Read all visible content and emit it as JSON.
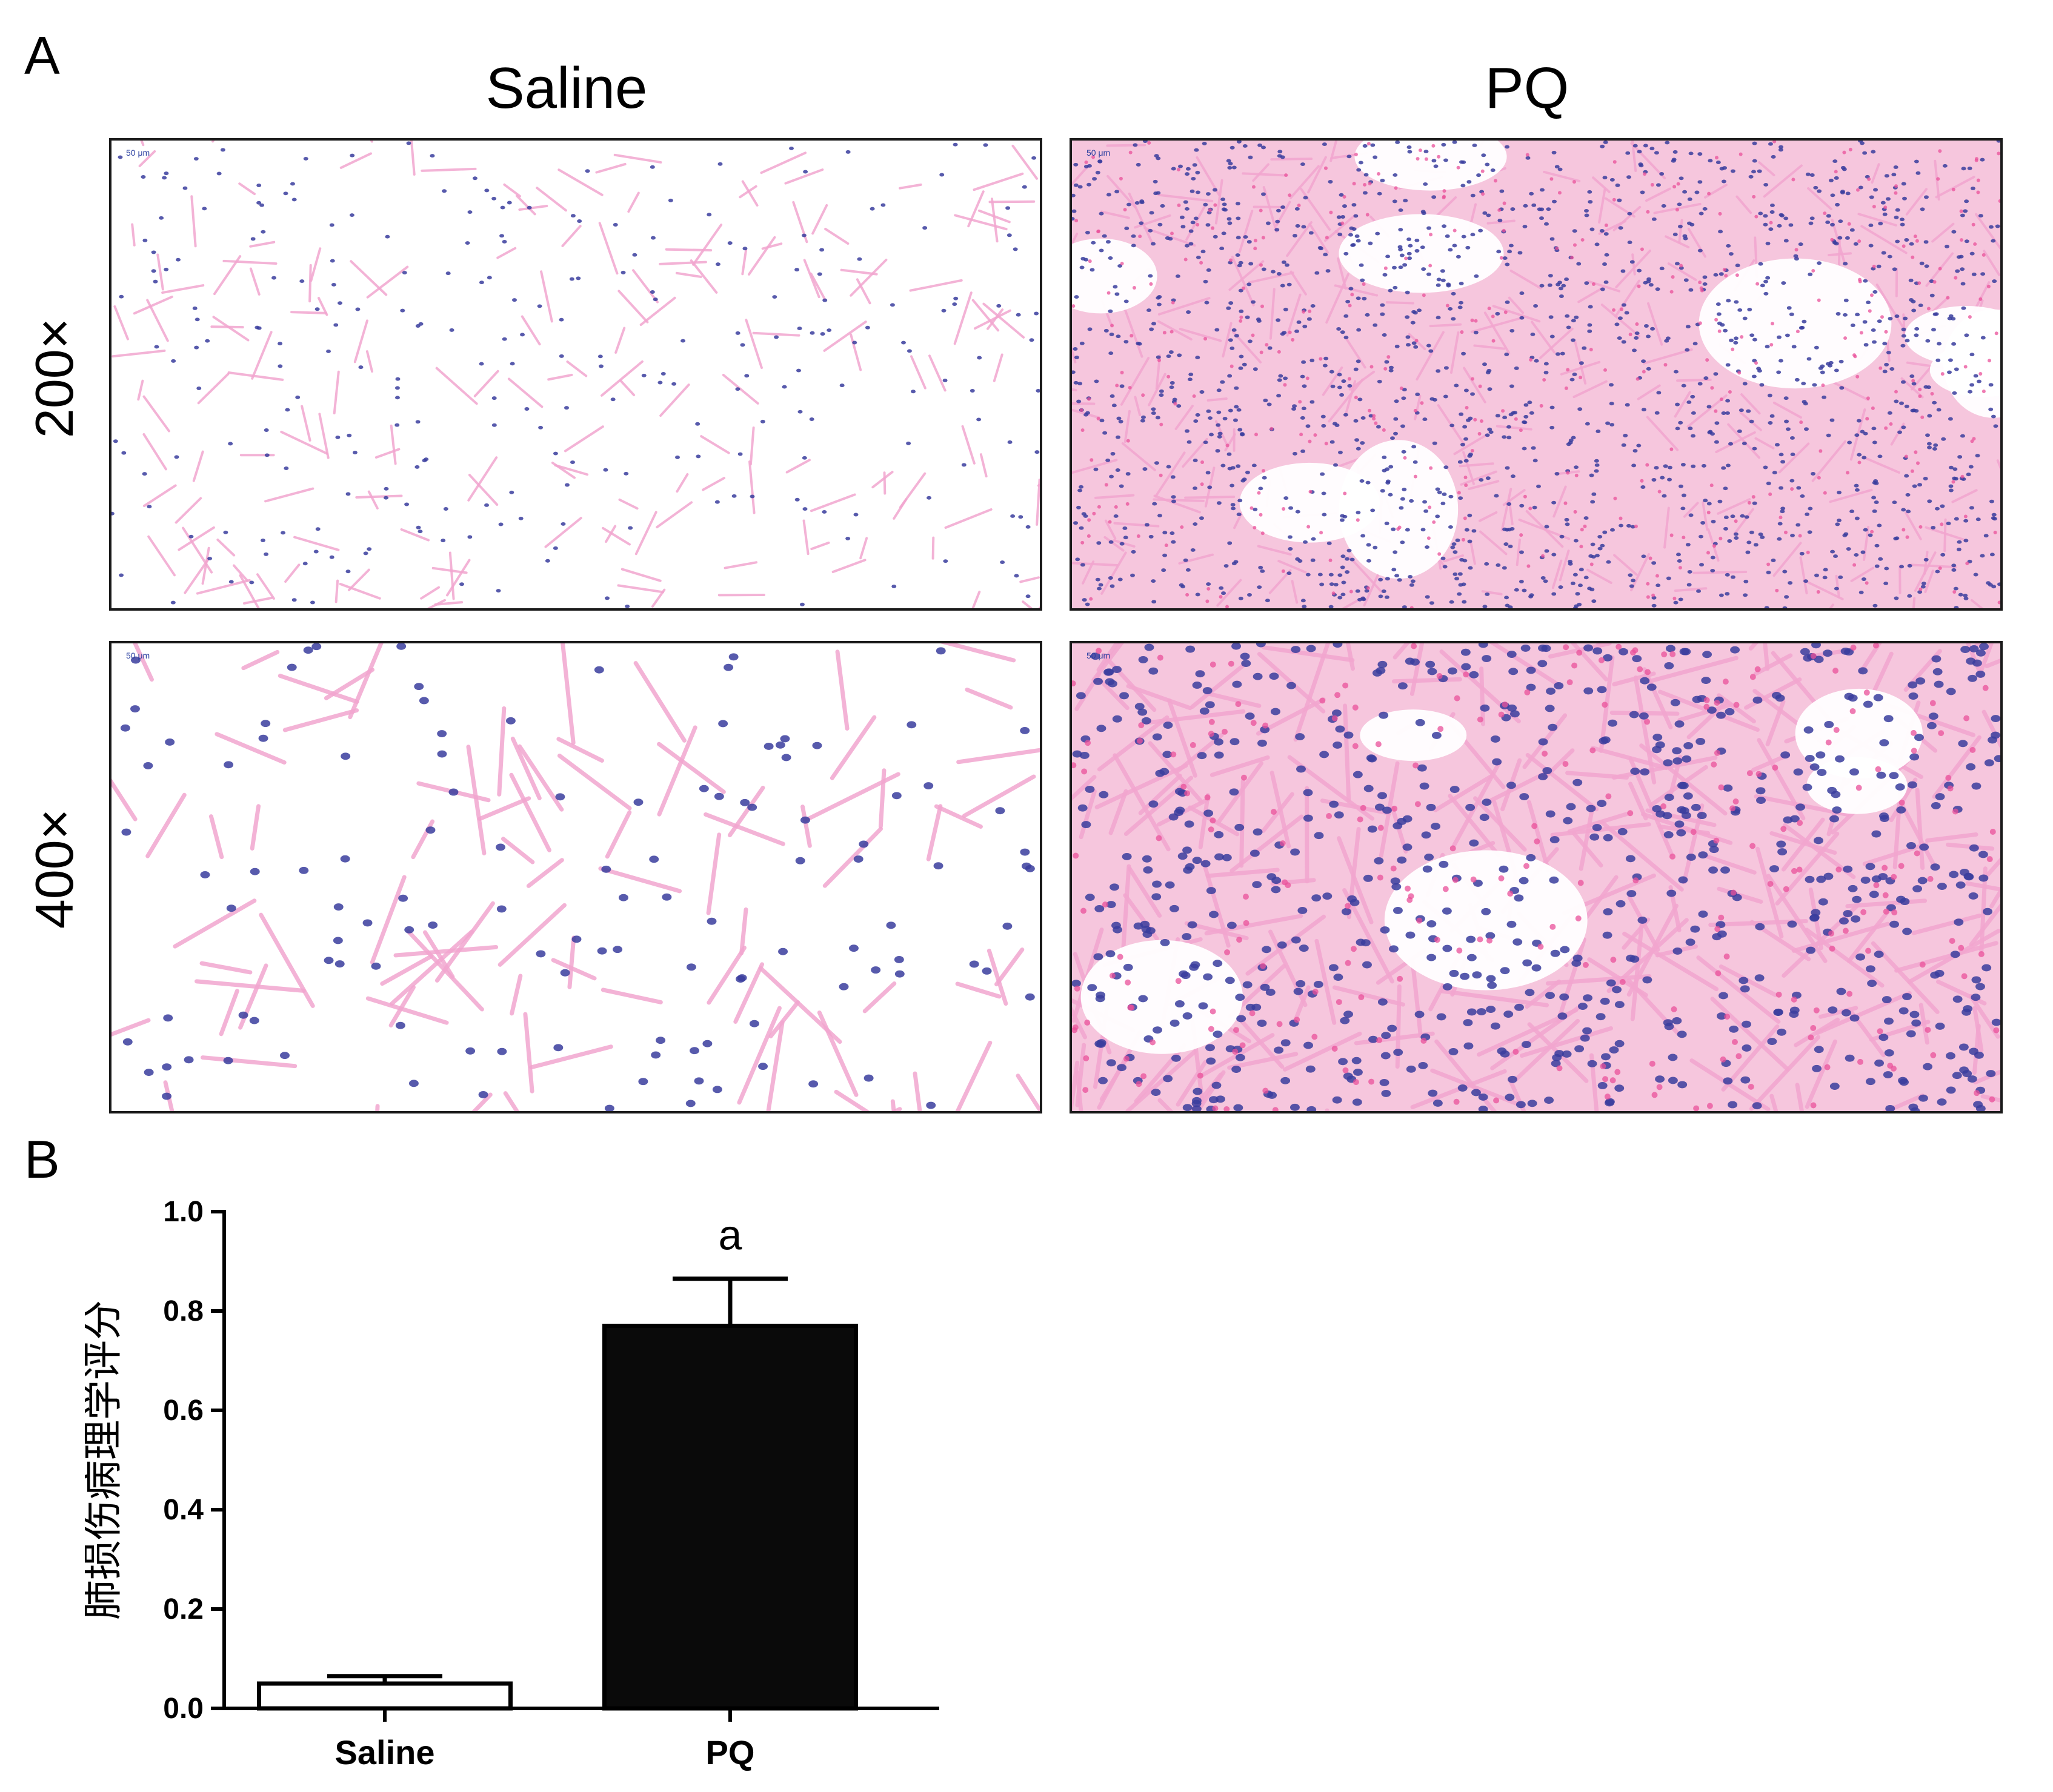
{
  "panel_a": {
    "letter": "A",
    "columns": [
      "Saline",
      "PQ"
    ],
    "rows": [
      "200×",
      "400×"
    ],
    "scale_bar_label": "50 μm",
    "images": [
      {
        "name": "saline-200x-micrograph",
        "density": "sparse"
      },
      {
        "name": "pq-200x-micrograph",
        "density": "dense"
      },
      {
        "name": "saline-400x-micrograph",
        "density": "sparse"
      },
      {
        "name": "pq-400x-micrograph",
        "density": "dense"
      }
    ],
    "colors": {
      "stroma": "#f2a6cf",
      "nuclei": "#3a3d9e",
      "rbc": "#e9509a",
      "border": "#1a1a1a"
    }
  },
  "panel_b": {
    "letter": "B"
  },
  "chart_data": {
    "type": "bar",
    "categories": [
      "Saline",
      "PQ"
    ],
    "values": [
      0.05,
      0.77
    ],
    "errors": [
      0.015,
      0.095
    ],
    "annotations": [
      "",
      "a"
    ],
    "ylabel": "肺损伤病理学评分",
    "xlabel": "",
    "ylim": [
      0,
      1.0
    ],
    "yticks": [
      "0.0",
      "0.2",
      "0.4",
      "0.6",
      "0.8",
      "1.0"
    ],
    "bar_colors": [
      "#ffffff",
      "#0a0a0a"
    ],
    "grid": false,
    "legend": "none"
  }
}
